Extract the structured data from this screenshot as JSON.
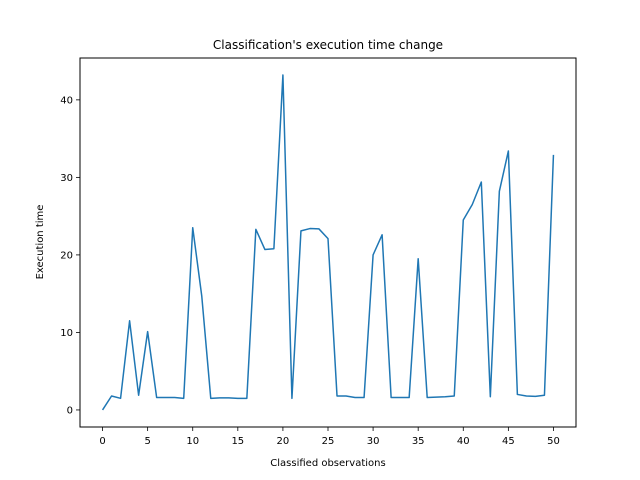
{
  "chart_data": {
    "type": "line",
    "title": "Classification's execution time change",
    "xlabel": "Classified observations",
    "ylabel": "Execution time",
    "xlim": [
      -2.5,
      52.5
    ],
    "ylim": [
      -2.2,
      45.4
    ],
    "xticks": [
      0,
      5,
      10,
      15,
      20,
      25,
      30,
      35,
      40,
      45,
      50
    ],
    "yticks": [
      0,
      10,
      20,
      30,
      40
    ],
    "grid": false,
    "legend": "none",
    "series": [
      {
        "color": "#1f77b4",
        "x": [
          0,
          1,
          2,
          3,
          4,
          5,
          6,
          7,
          8,
          9,
          10,
          11,
          12,
          13,
          14,
          15,
          16,
          17,
          18,
          19,
          20,
          21,
          22,
          23,
          24,
          25,
          26,
          27,
          28,
          29,
          30,
          31,
          32,
          33,
          34,
          35,
          36,
          37,
          38,
          39,
          40,
          41,
          42,
          43,
          44,
          45,
          46,
          47,
          48,
          49,
          50
        ],
        "values": [
          0.0,
          1.8,
          1.5,
          11.5,
          1.9,
          10.1,
          1.6,
          1.6,
          1.6,
          1.5,
          23.5,
          14.7,
          1.5,
          1.55,
          1.55,
          1.5,
          1.5,
          23.3,
          20.7,
          20.8,
          43.2,
          1.5,
          23.1,
          23.4,
          23.35,
          22.1,
          1.8,
          1.8,
          1.6,
          1.6,
          20.0,
          22.6,
          1.6,
          1.6,
          1.6,
          19.5,
          1.6,
          1.65,
          1.7,
          1.8,
          24.5,
          26.5,
          29.4,
          1.7,
          28.2,
          33.4,
          2.0,
          1.8,
          1.75,
          1.9,
          32.9
        ]
      }
    ]
  }
}
